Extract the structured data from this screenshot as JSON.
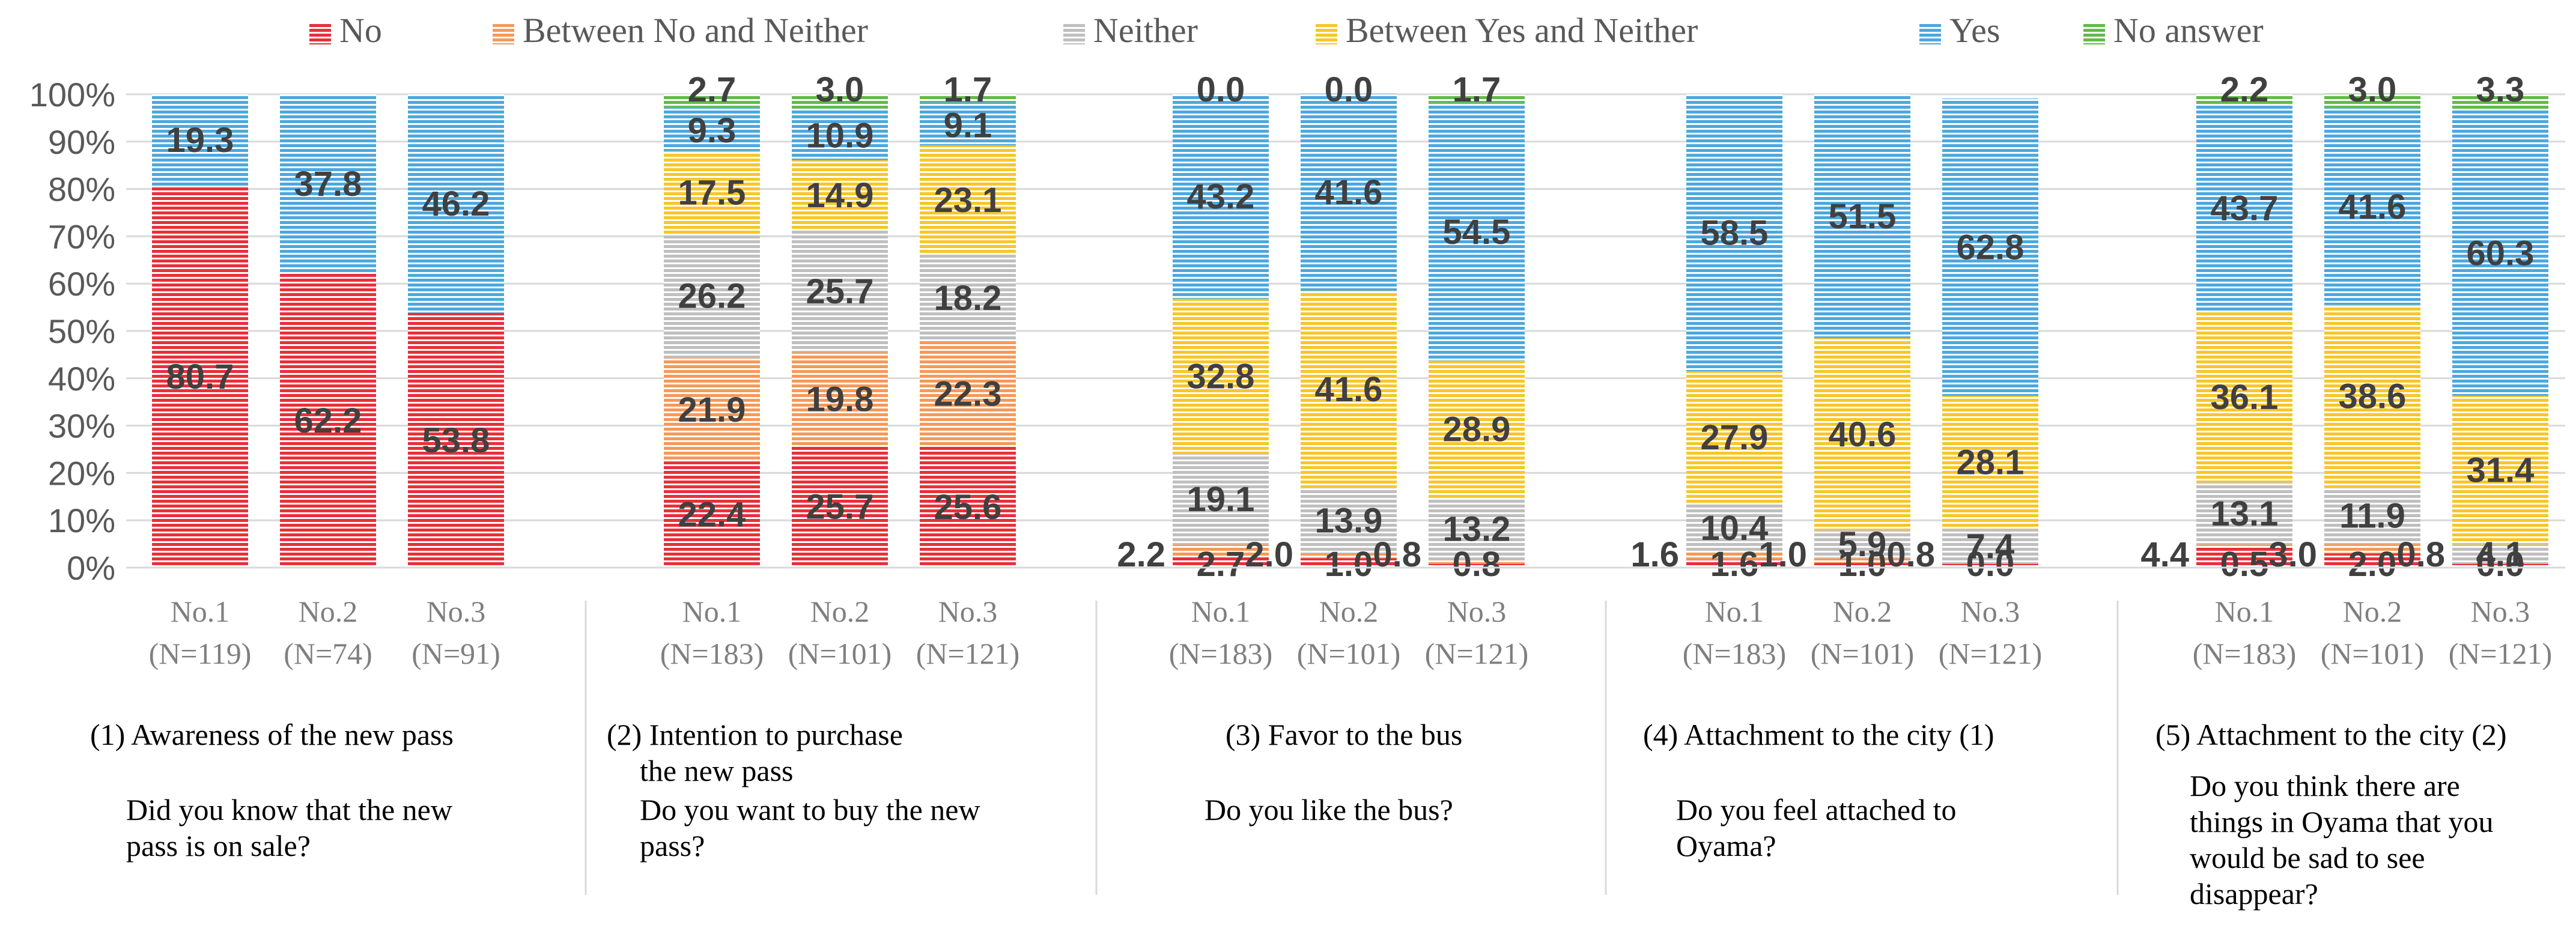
{
  "chart_data": {
    "type": "bar",
    "stacked": true,
    "percent": true,
    "legend_position": "top",
    "yticks": [
      "0%",
      "10%",
      "20%",
      "30%",
      "40%",
      "50%",
      "60%",
      "70%",
      "80%",
      "90%",
      "100%"
    ],
    "ylim": [
      0,
      100
    ],
    "legend": [
      {
        "key": "no",
        "label": "No",
        "color": "#e8303a"
      },
      {
        "key": "bnn",
        "label": "Between No and Neither",
        "color": "#f49a5a"
      },
      {
        "key": "neither",
        "label": "Neither",
        "color": "#bfbfbf"
      },
      {
        "key": "byn",
        "label": "Between Yes and Neither",
        "color": "#f6c72b"
      },
      {
        "key": "yes",
        "label": "Yes",
        "color": "#4ea8de"
      },
      {
        "key": "noans",
        "label": "No answer",
        "color": "#62bb47"
      }
    ],
    "groups": [
      {
        "title": "(1) Awareness of the new  pass",
        "question": [
          "Did you know that the new",
          "pass is on sale?"
        ],
        "bars": [
          {
            "name": "No.1",
            "n": "(N=119)",
            "values": {
              "no": 80.7,
              "yes": 19.3
            },
            "labels": [
              {
                "key": "no",
                "text": "80.7"
              },
              {
                "key": "yes",
                "text": "19.3"
              }
            ]
          },
          {
            "name": "No.2",
            "n": "(N=74)",
            "values": {
              "no": 62.2,
              "yes": 37.8
            },
            "labels": [
              {
                "key": "no",
                "text": "62.2"
              },
              {
                "key": "yes",
                "text": "37.8"
              }
            ]
          },
          {
            "name": "No.3",
            "n": "(N=91)",
            "values": {
              "no": 53.8,
              "yes": 46.2
            },
            "labels": [
              {
                "key": "no",
                "text": "53.8"
              },
              {
                "key": "yes",
                "text": "46.2"
              }
            ]
          }
        ]
      },
      {
        "title": "(2) Intention to purchase",
        "title2": "the new  pass",
        "question": [
          "Do you want to buy the new",
          "pass?"
        ],
        "bars": [
          {
            "name": "No.1",
            "n": "(N=183)",
            "values": {
              "no": 22.4,
              "bnn": 21.9,
              "neither": 26.2,
              "byn": 17.5,
              "yes": 9.3,
              "noans": 2.7
            },
            "labels": [
              {
                "key": "no",
                "text": "22.4"
              },
              {
                "key": "bnn",
                "text": "21.9"
              },
              {
                "key": "neither",
                "text": "26.2"
              },
              {
                "key": "byn",
                "text": "17.5"
              },
              {
                "key": "yes",
                "text": "9.3"
              },
              {
                "key": "noans",
                "text": "2.7"
              }
            ]
          },
          {
            "name": "No.2",
            "n": "(N=101)",
            "values": {
              "no": 25.7,
              "bnn": 19.8,
              "neither": 25.7,
              "byn": 14.9,
              "yes": 10.9,
              "noans": 3.0
            },
            "labels": [
              {
                "key": "no",
                "text": "25.7"
              },
              {
                "key": "bnn",
                "text": "19.8"
              },
              {
                "key": "neither",
                "text": "25.7"
              },
              {
                "key": "byn",
                "text": "14.9"
              },
              {
                "key": "yes",
                "text": "10.9"
              },
              {
                "key": "noans",
                "text": "3.0"
              }
            ]
          },
          {
            "name": "No.3",
            "n": "(N=121)",
            "values": {
              "no": 25.6,
              "bnn": 22.3,
              "neither": 18.2,
              "byn": 23.1,
              "yes": 9.1,
              "noans": 1.7
            },
            "labels": [
              {
                "key": "no",
                "text": "25.6"
              },
              {
                "key": "bnn",
                "text": "22.3"
              },
              {
                "key": "neither",
                "text": "18.2"
              },
              {
                "key": "byn",
                "text": "23.1"
              },
              {
                "key": "yes",
                "text": "9.1"
              },
              {
                "key": "noans",
                "text": "1.7"
              }
            ]
          }
        ]
      },
      {
        "title": "(3) Favor to the bus",
        "question": [
          "Do you like the bus?"
        ],
        "bars": [
          {
            "name": "No.1",
            "n": "(N=183)",
            "values": {
              "no": 2.2,
              "bnn": 2.7,
              "neither": 19.1,
              "byn": 32.8,
              "yes": 43.2,
              "noans": 0.0
            },
            "labels": [
              {
                "key": "no",
                "text": "2.2",
                "side": "left"
              },
              {
                "key": "bnn",
                "text": "2.7",
                "side": "below"
              },
              {
                "key": "neither",
                "text": "19.1"
              },
              {
                "key": "byn",
                "text": "32.8"
              },
              {
                "key": "yes",
                "text": "43.2"
              },
              {
                "key": "noans",
                "text": "0.0"
              }
            ]
          },
          {
            "name": "No.2",
            "n": "(N=101)",
            "values": {
              "no": 2.0,
              "bnn": 1.0,
              "neither": 13.9,
              "byn": 41.6,
              "yes": 41.6,
              "noans": 0.0
            },
            "labels": [
              {
                "key": "no",
                "text": "2.0",
                "side": "left"
              },
              {
                "key": "bnn",
                "text": "1.0",
                "side": "below"
              },
              {
                "key": "neither",
                "text": "13.9"
              },
              {
                "key": "byn",
                "text": "41.6"
              },
              {
                "key": "yes",
                "text": "41.6"
              },
              {
                "key": "noans",
                "text": "0.0"
              }
            ]
          },
          {
            "name": "No.3",
            "n": "(N=121)",
            "values": {
              "no": 0.8,
              "bnn": 0.8,
              "neither": 13.2,
              "byn": 28.9,
              "yes": 54.5,
              "noans": 1.7
            },
            "labels": [
              {
                "key": "no",
                "text": "0.8",
                "side": "left"
              },
              {
                "key": "bnn",
                "text": "0.8",
                "side": "below"
              },
              {
                "key": "neither",
                "text": "13.2"
              },
              {
                "key": "byn",
                "text": "28.9"
              },
              {
                "key": "yes",
                "text": "54.5"
              },
              {
                "key": "noans",
                "text": "1.7"
              }
            ]
          }
        ]
      },
      {
        "title": "(4) Attachment to the city (1)",
        "question": [
          "Do you feel attached to",
          "Oyama?"
        ],
        "bars": [
          {
            "name": "No.1",
            "n": "(N=183)",
            "values": {
              "no": 1.6,
              "bnn": 1.6,
              "neither": 10.4,
              "byn": 27.9,
              "yes": 58.5
            },
            "labels": [
              {
                "key": "no",
                "text": "1.6",
                "side": "left"
              },
              {
                "key": "bnn",
                "text": "1.6",
                "side": "below"
              },
              {
                "key": "neither",
                "text": "10.4"
              },
              {
                "key": "byn",
                "text": "27.9"
              },
              {
                "key": "yes",
                "text": "58.5"
              }
            ]
          },
          {
            "name": "No.2",
            "n": "(N=101)",
            "values": {
              "no": 1.0,
              "bnn": 1.0,
              "neither": 5.9,
              "byn": 40.6,
              "yes": 51.5
            },
            "labels": [
              {
                "key": "no",
                "text": "1.0",
                "side": "left"
              },
              {
                "key": "bnn",
                "text": "1.0",
                "side": "below"
              },
              {
                "key": "neither",
                "text": "5.9"
              },
              {
                "key": "byn",
                "text": "40.6"
              },
              {
                "key": "yes",
                "text": "51.5"
              }
            ]
          },
          {
            "name": "No.3",
            "n": "(N=121)",
            "values": {
              "no": 0.8,
              "bnn": 0.0,
              "neither": 7.4,
              "byn": 28.1,
              "yes": 62.8
            },
            "labels": [
              {
                "key": "no",
                "text": "0.8",
                "side": "left"
              },
              {
                "key": "bnn",
                "text": "0.0",
                "side": "below"
              },
              {
                "key": "neither",
                "text": "7.4"
              },
              {
                "key": "byn",
                "text": "28.1"
              },
              {
                "key": "yes",
                "text": "62.8"
              }
            ]
          }
        ]
      },
      {
        "title": "(5) Attachment to the city (2)",
        "question": [
          "Do you think there are",
          "things in Oyama that you",
          "would be sad to see",
          "disappear?"
        ],
        "bars": [
          {
            "name": "No.1",
            "n": "(N=183)",
            "values": {
              "no": 4.4,
              "bnn": 0.5,
              "neither": 13.1,
              "byn": 36.1,
              "yes": 43.7,
              "noans": 2.2
            },
            "labels": [
              {
                "key": "no",
                "text": "4.4",
                "side": "left"
              },
              {
                "key": "bnn",
                "text": "0.5",
                "side": "below"
              },
              {
                "key": "neither",
                "text": "13.1"
              },
              {
                "key": "byn",
                "text": "36.1"
              },
              {
                "key": "yes",
                "text": "43.7"
              },
              {
                "key": "noans",
                "text": "2.2"
              }
            ]
          },
          {
            "name": "No.2",
            "n": "(N=101)",
            "values": {
              "no": 3.0,
              "bnn": 2.0,
              "neither": 11.9,
              "byn": 38.6,
              "yes": 41.6,
              "noans": 3.0
            },
            "labels": [
              {
                "key": "no",
                "text": "3.0",
                "side": "left"
              },
              {
                "key": "bnn",
                "text": "2.0",
                "side": "below"
              },
              {
                "key": "neither",
                "text": "11.9"
              },
              {
                "key": "byn",
                "text": "38.6"
              },
              {
                "key": "yes",
                "text": "41.6"
              },
              {
                "key": "noans",
                "text": "3.0"
              }
            ]
          },
          {
            "name": "No.3",
            "n": "(N=121)",
            "values": {
              "no": 0.8,
              "bnn": 0.0,
              "neither": 4.1,
              "byn": 31.4,
              "yes": 60.3,
              "noans": 3.3
            },
            "labels": [
              {
                "key": "no",
                "text": "0.8",
                "side": "left"
              },
              {
                "key": "bnn",
                "text": "0.0",
                "side": "below"
              },
              {
                "key": "neither",
                "text": "4.1"
              },
              {
                "key": "byn",
                "text": "31.4"
              },
              {
                "key": "yes",
                "text": "60.3"
              },
              {
                "key": "noans",
                "text": "3.3"
              }
            ]
          }
        ]
      }
    ]
  }
}
